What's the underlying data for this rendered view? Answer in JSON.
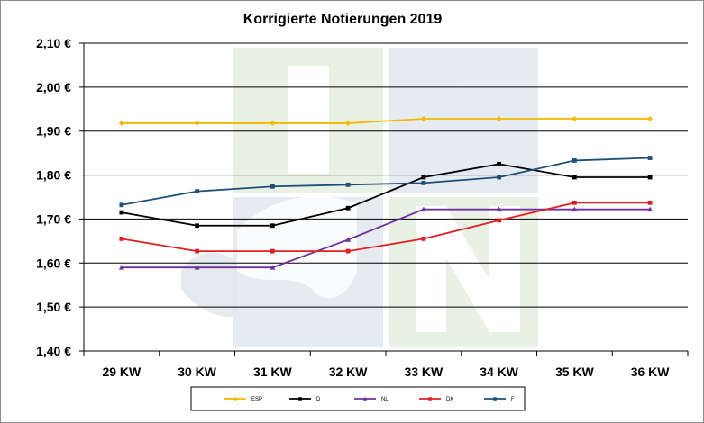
{
  "chart_data": {
    "type": "line",
    "title": "Korrigierte Notierungen 2019",
    "xlabel": "",
    "ylabel": "",
    "categories": [
      "29 KW",
      "30 KW",
      "31 KW",
      "32 KW",
      "33 KW",
      "34 KW",
      "35 KW",
      "36 KW"
    ],
    "ylim": [
      1.4,
      2.1
    ],
    "yticks": [
      "1,40 €",
      "1,50 €",
      "1,60 €",
      "1,70 €",
      "1,80 €",
      "1,90 €",
      "2,00 €",
      "2,10 €"
    ],
    "grid": true,
    "legend_position": "bottom",
    "series": [
      {
        "name": "ESP",
        "color": "#f5b800",
        "marker": "diamond",
        "values": [
          1.918,
          1.918,
          1.918,
          1.918,
          1.928,
          1.928,
          1.928,
          1.928
        ]
      },
      {
        "name": "D",
        "color": "#000000",
        "marker": "square",
        "values": [
          1.715,
          1.685,
          1.685,
          1.725,
          1.795,
          1.825,
          1.795,
          1.795
        ]
      },
      {
        "name": "NL",
        "color": "#7030a0",
        "marker": "triangle",
        "values": [
          1.59,
          1.59,
          1.59,
          1.653,
          1.722,
          1.722,
          1.722,
          1.722
        ]
      },
      {
        "name": "DK",
        "color": "#e02020",
        "marker": "square",
        "values": [
          1.655,
          1.627,
          1.627,
          1.627,
          1.655,
          1.697,
          1.737,
          1.737
        ]
      },
      {
        "name": "F",
        "color": "#1f4e79",
        "marker": "square",
        "values": [
          1.732,
          1.763,
          1.774,
          1.778,
          1.782,
          1.795,
          1.833,
          1.839
        ]
      }
    ]
  }
}
